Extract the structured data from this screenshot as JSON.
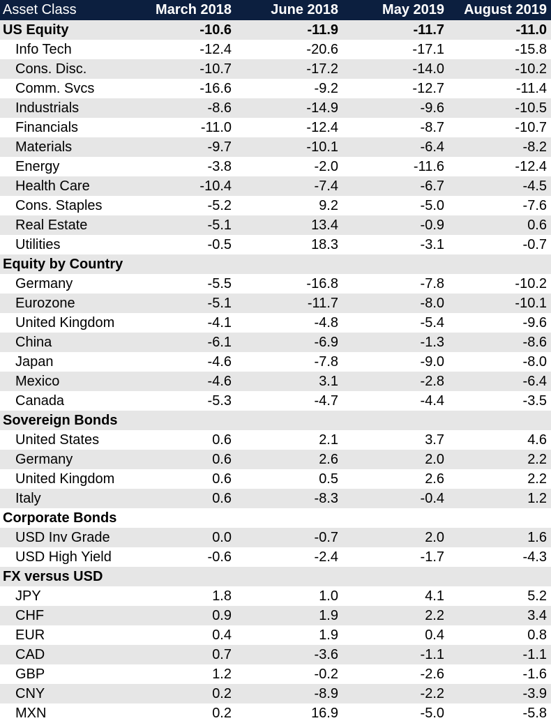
{
  "header": {
    "columns": [
      "Asset Class",
      "March 2018",
      "June 2018",
      "May 2019",
      "August 2019"
    ]
  },
  "rows": [
    {
      "label": "US Equity",
      "section": true,
      "values": [
        "-10.6",
        "-11.9",
        "-11.7",
        "-11.0"
      ]
    },
    {
      "label": "Info Tech",
      "values": [
        "-12.4",
        "-20.6",
        "-17.1",
        "-15.8"
      ]
    },
    {
      "label": "Cons. Disc.",
      "values": [
        "-10.7",
        "-17.2",
        "-14.0",
        "-10.2"
      ]
    },
    {
      "label": "Comm. Svcs",
      "values": [
        "-16.6",
        "-9.2",
        "-12.7",
        "-11.4"
      ]
    },
    {
      "label": "Industrials",
      "values": [
        "-8.6",
        "-14.9",
        "-9.6",
        "-10.5"
      ]
    },
    {
      "label": "Financials",
      "values": [
        "-11.0",
        "-12.4",
        "-8.7",
        "-10.7"
      ]
    },
    {
      "label": "Materials",
      "values": [
        "-9.7",
        "-10.1",
        "-6.4",
        "-8.2"
      ]
    },
    {
      "label": "Energy",
      "values": [
        "-3.8",
        "-2.0",
        "-11.6",
        "-12.4"
      ]
    },
    {
      "label": "Health Care",
      "values": [
        "-10.4",
        "-7.4",
        "-6.7",
        "-4.5"
      ]
    },
    {
      "label": "Cons. Staples",
      "values": [
        "-5.2",
        "9.2",
        "-5.0",
        "-7.6"
      ]
    },
    {
      "label": "Real Estate",
      "values": [
        "-5.1",
        "13.4",
        "-0.9",
        "0.6"
      ]
    },
    {
      "label": "Utilities",
      "values": [
        "-0.5",
        "18.3",
        "-3.1",
        "-0.7"
      ]
    },
    {
      "label": "Equity by Country",
      "section": true,
      "values": [
        "",
        "",
        "",
        ""
      ]
    },
    {
      "label": "Germany",
      "values": [
        "-5.5",
        "-16.8",
        "-7.8",
        "-10.2"
      ]
    },
    {
      "label": "Eurozone",
      "values": [
        "-5.1",
        "-11.7",
        "-8.0",
        "-10.1"
      ]
    },
    {
      "label": "United Kingdom",
      "values": [
        "-4.1",
        "-4.8",
        "-5.4",
        "-9.6"
      ]
    },
    {
      "label": "China",
      "values": [
        "-6.1",
        "-6.9",
        "-1.3",
        "-8.6"
      ]
    },
    {
      "label": "Japan",
      "values": [
        "-4.6",
        "-7.8",
        "-9.0",
        "-8.0"
      ]
    },
    {
      "label": "Mexico",
      "values": [
        "-4.6",
        "3.1",
        "-2.8",
        "-6.4"
      ]
    },
    {
      "label": "Canada",
      "values": [
        "-5.3",
        "-4.7",
        "-4.4",
        "-3.5"
      ]
    },
    {
      "label": "Sovereign Bonds",
      "section": true,
      "values": [
        "",
        "",
        "",
        ""
      ]
    },
    {
      "label": "United States",
      "values": [
        "0.6",
        "2.1",
        "3.7",
        "4.6"
      ]
    },
    {
      "label": "Germany",
      "values": [
        "0.6",
        "2.6",
        "2.0",
        "2.2"
      ]
    },
    {
      "label": "United Kingdom",
      "values": [
        "0.6",
        "0.5",
        "2.6",
        "2.2"
      ]
    },
    {
      "label": "Italy",
      "values": [
        "0.6",
        "-8.3",
        "-0.4",
        "1.2"
      ]
    },
    {
      "label": "Corporate Bonds",
      "section": true,
      "values": [
        "",
        "",
        "",
        ""
      ]
    },
    {
      "label": "USD Inv Grade",
      "values": [
        "0.0",
        "-0.7",
        "2.0",
        "1.6"
      ]
    },
    {
      "label": "USD High Yield",
      "values": [
        "-0.6",
        "-2.4",
        "-1.7",
        "-4.3"
      ]
    },
    {
      "label": "FX versus USD",
      "section": true,
      "values": [
        "",
        "",
        "",
        ""
      ]
    },
    {
      "label": "JPY",
      "values": [
        "1.8",
        "1.0",
        "4.1",
        "5.2"
      ]
    },
    {
      "label": "CHF",
      "values": [
        "0.9",
        "1.9",
        "2.2",
        "3.4"
      ]
    },
    {
      "label": "EUR",
      "values": [
        "0.4",
        "1.9",
        "0.4",
        "0.8"
      ]
    },
    {
      "label": "CAD",
      "values": [
        "0.7",
        "-3.6",
        "-1.1",
        "-1.1"
      ]
    },
    {
      "label": "GBP",
      "values": [
        "1.2",
        "-0.2",
        "-2.6",
        "-1.6"
      ]
    },
    {
      "label": "CNY",
      "values": [
        "0.2",
        "-8.9",
        "-2.2",
        "-3.9"
      ]
    },
    {
      "label": "MXN",
      "values": [
        "0.2",
        "16.9",
        "-5.0",
        "-5.8"
      ]
    }
  ],
  "colors": {
    "header_background": "#0c1f3f",
    "header_text": "#ffffff",
    "shaded_row": "#e6e6e6"
  }
}
